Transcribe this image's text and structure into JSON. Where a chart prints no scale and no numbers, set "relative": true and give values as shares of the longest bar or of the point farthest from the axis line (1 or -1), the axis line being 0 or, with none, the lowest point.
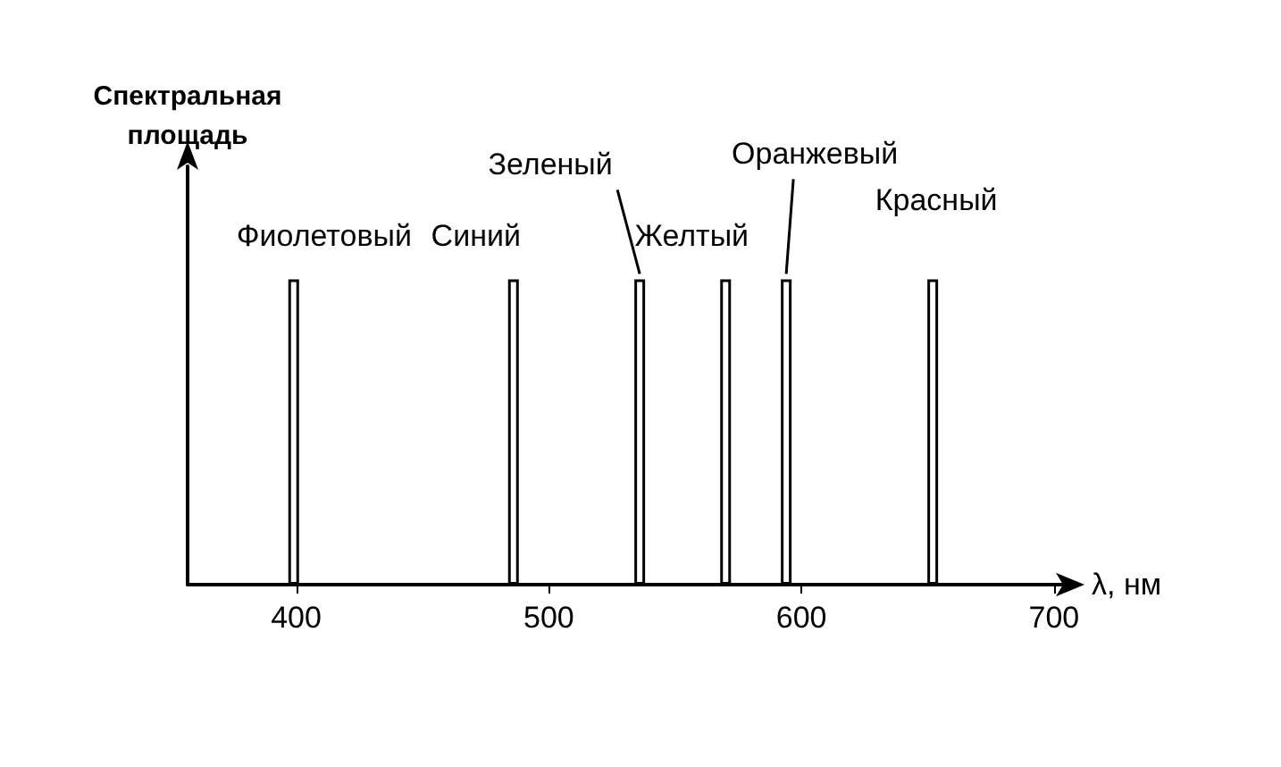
{
  "chart_data": {
    "type": "bar",
    "relative": true,
    "xlabel": "λ, нм",
    "ylabel": "Спектральная\nплощадь",
    "x": [
      399,
      486,
      536,
      570,
      594,
      652
    ],
    "series": [
      {
        "color": "#000000",
        "values": [
          1,
          1,
          1,
          1,
          1,
          1
        ]
      }
    ],
    "xlim": [
      357,
      705
    ],
    "xticks": [
      400,
      500,
      600,
      700
    ],
    "grid": false,
    "annotations": [
      {
        "text": "Фиолетовый",
        "x": 399,
        "y": 1
      },
      {
        "text": "Синий",
        "x": 486,
        "y": 1
      },
      {
        "text": "Зеленый",
        "x": 536,
        "y": 1
      },
      {
        "text": "Желтый",
        "x": 570,
        "y": 1
      },
      {
        "text": "Оранжевый",
        "x": 594,
        "y": 1
      },
      {
        "text": "Красный",
        "x": 652,
        "y": 1
      }
    ]
  }
}
